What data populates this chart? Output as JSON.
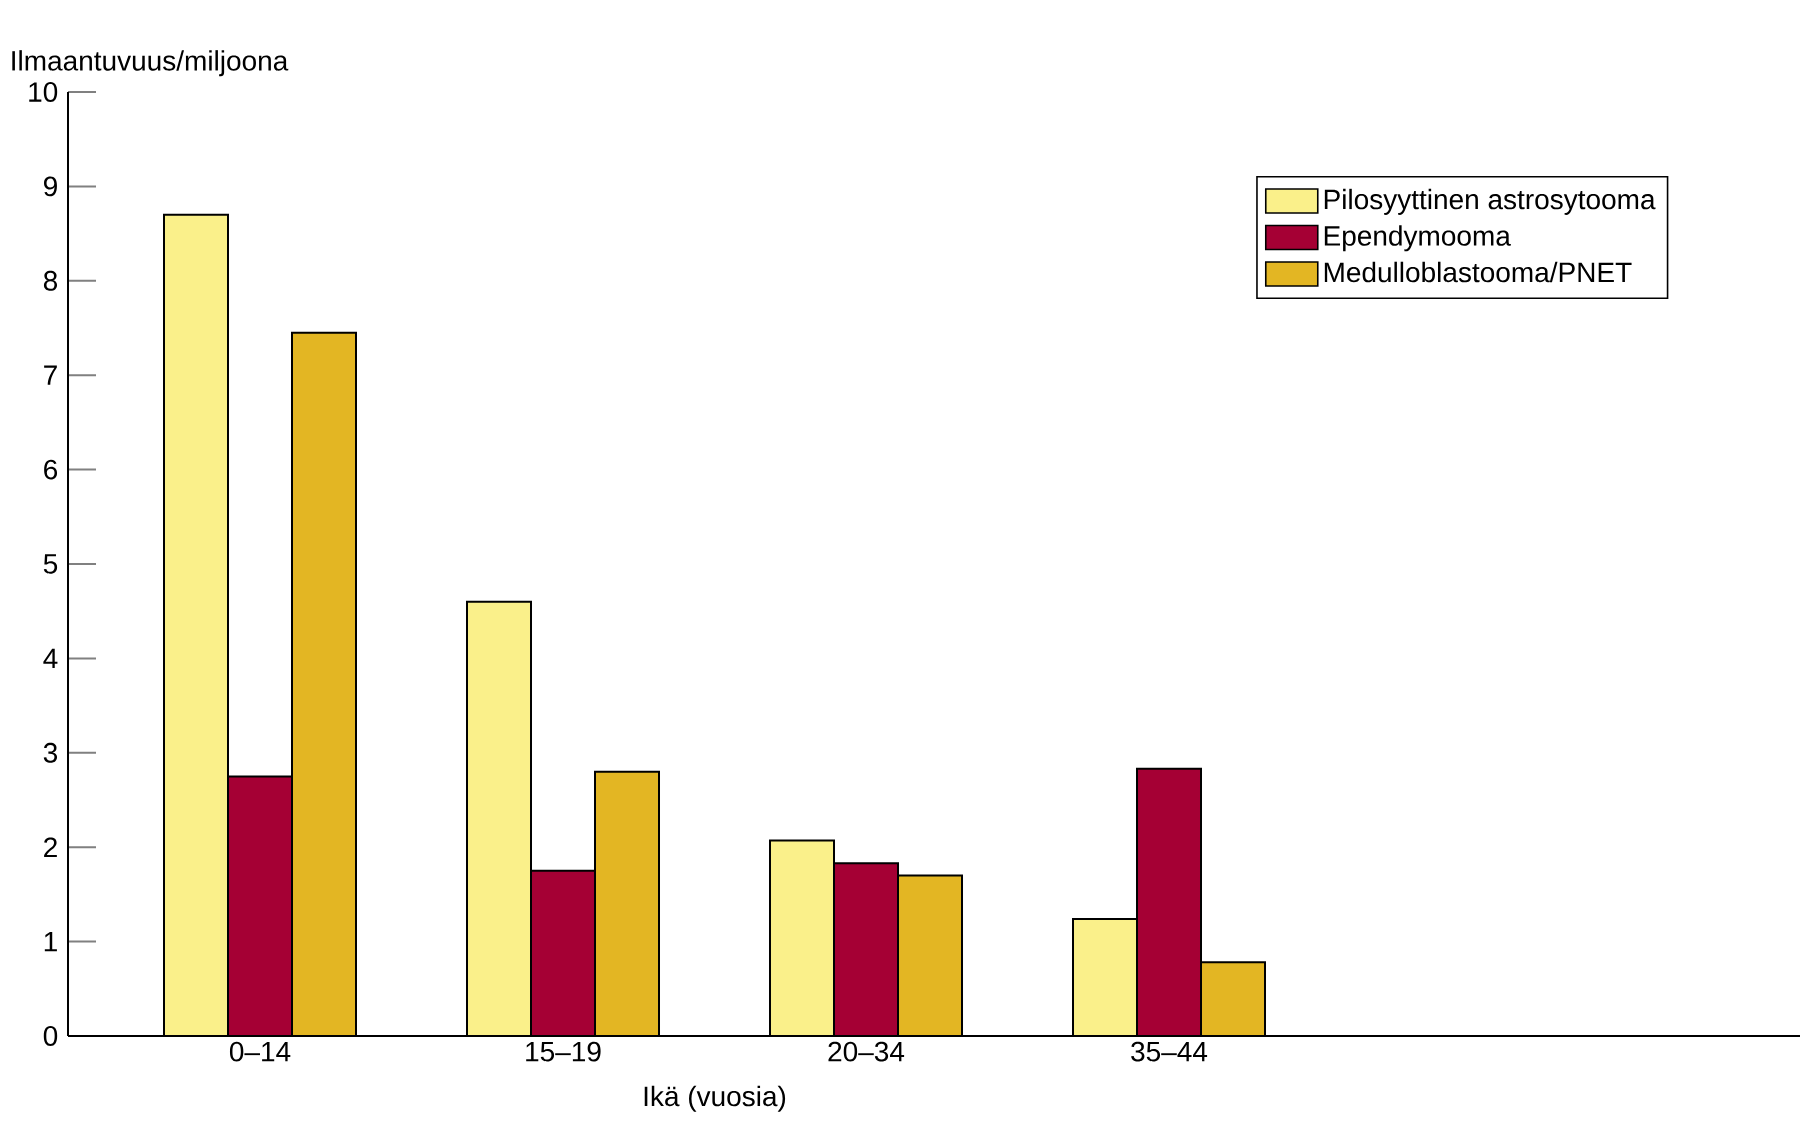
{
  "chart_data": {
    "type": "bar",
    "xlabel": "Ikä (vuosia)",
    "ylabel": "Ilmaantuvuus/miljoona",
    "categories": [
      "0–14",
      "15–19",
      "20–34",
      "35–44"
    ],
    "series": [
      {
        "name": "Pilosyyttinen astrosytooma",
        "color": "#faf08a",
        "values": [
          8.7,
          4.6,
          2.07,
          1.24
        ]
      },
      {
        "name": "Ependymooma",
        "color": "#a50034",
        "values": [
          2.75,
          1.75,
          1.83,
          2.83
        ]
      },
      {
        "name": "Medulloblastooma/PNET",
        "color": "#e3b623",
        "values": [
          7.45,
          2.8,
          1.7,
          0.78
        ]
      }
    ],
    "ylim": [
      0,
      10
    ],
    "yticks": [
      0,
      1,
      2,
      3,
      4,
      5,
      6,
      7,
      8,
      9,
      10
    ],
    "grid": false,
    "legend": "top right"
  }
}
